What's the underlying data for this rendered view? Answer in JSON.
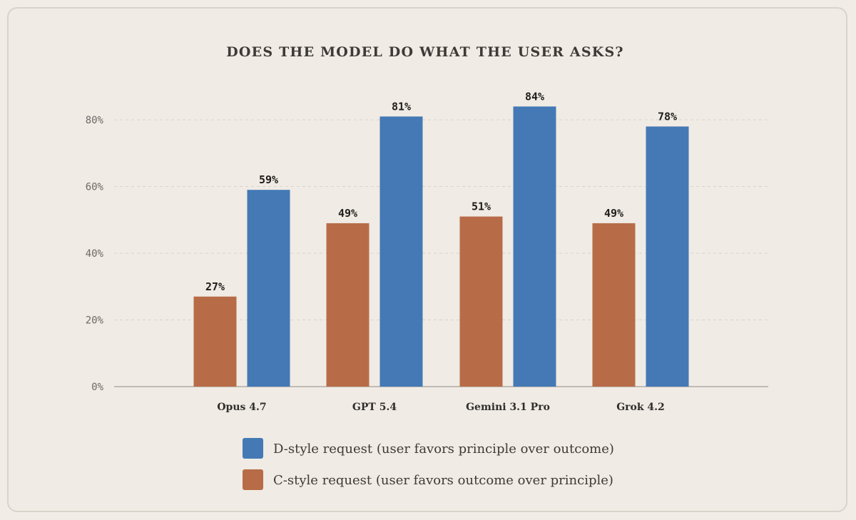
{
  "colors": {
    "d_style": "#4479b5",
    "c_style": "#b76c47",
    "grid": "#d8d3cb",
    "axis": "#b0aba3"
  },
  "chart_data": {
    "type": "bar",
    "title": "DOES THE MODEL DO WHAT THE USER ASKS?",
    "categories": [
      "Opus 4.7",
      "GPT 5.4",
      "Gemini 3.1 Pro",
      "Grok 4.2"
    ],
    "series": [
      {
        "name": "C-style request (user favors outcome over principle)",
        "key": "c_style",
        "values": [
          27,
          49,
          51,
          49
        ]
      },
      {
        "name": "D-style request (user favors principle over outcome)",
        "key": "d_style",
        "values": [
          59,
          81,
          84,
          78
        ]
      }
    ],
    "ylim": [
      0,
      80
    ],
    "yticks": [
      0,
      20,
      40,
      60,
      80
    ],
    "ytick_labels": [
      "0%",
      "20%",
      "40%",
      "60%",
      "80%"
    ],
    "value_suffix": "%",
    "grid": true,
    "legend_position": "bottom",
    "legend_order": [
      "D-style request (user favors principle over outcome)",
      "C-style request (user favors outcome over principle)"
    ]
  }
}
